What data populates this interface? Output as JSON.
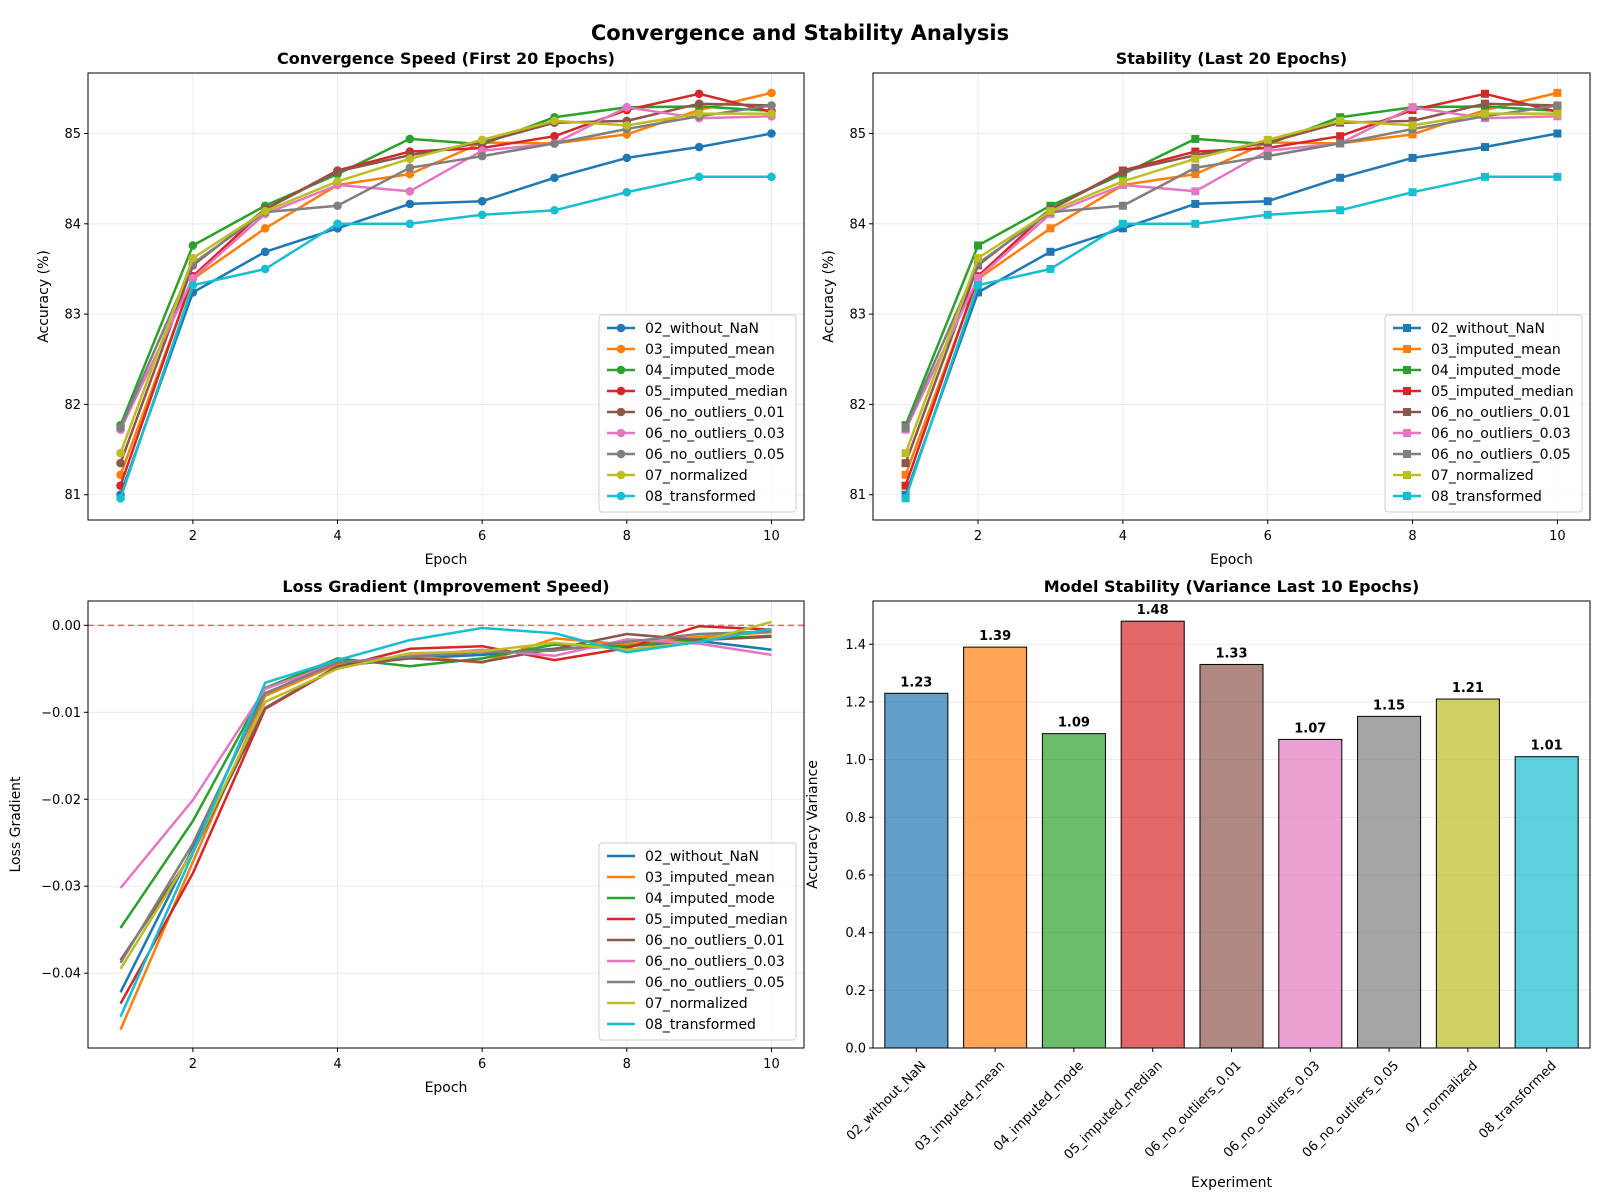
{
  "figure_title": "Convergence and Stability Analysis",
  "colors": {
    "02_without_NaN": "#1f77b4",
    "03_imputed_mean": "#ff7f0e",
    "04_imputed_mode": "#2ca02c",
    "05_imputed_median": "#d62728",
    "06_no_outliers_0.01": "#8c564b",
    "06_no_outliers_0.03": "#e377c2",
    "06_no_outliers_0.05": "#7f7f7f",
    "07_normalized": "#bcbd22",
    "08_transformed": "#17becf",
    "reference_line": "#e8686a"
  },
  "chart_data": [
    {
      "id": "convergence",
      "type": "line",
      "marker": "circle",
      "title": "Convergence Speed (First 20 Epochs)",
      "xlabel": "Epoch",
      "ylabel": "Accuracy (%)",
      "xlim": [
        0.55,
        10.45
      ],
      "ylim": [
        80.72,
        85.67
      ],
      "xticks": [
        2,
        4,
        6,
        8,
        10
      ],
      "yticks": [
        81,
        82,
        83,
        84,
        85
      ],
      "grid": true,
      "legend": "lower-right",
      "x": [
        1,
        2,
        3,
        4,
        5,
        6,
        7,
        8,
        9,
        10
      ],
      "series": [
        {
          "name": "02_without_NaN",
          "values": [
            81.0,
            83.24,
            83.69,
            83.95,
            84.22,
            84.25,
            84.51,
            84.73,
            84.85,
            85.0
          ]
        },
        {
          "name": "03_imputed_mean",
          "values": [
            81.22,
            83.39,
            83.95,
            84.43,
            84.55,
            84.9,
            84.89,
            84.99,
            85.26,
            85.45
          ]
        },
        {
          "name": "04_imputed_mode",
          "values": [
            81.77,
            83.76,
            84.2,
            84.55,
            84.94,
            84.88,
            85.18,
            85.29,
            85.3,
            85.25
          ]
        },
        {
          "name": "05_imputed_median",
          "values": [
            81.1,
            83.42,
            84.16,
            84.59,
            84.8,
            84.84,
            84.97,
            85.26,
            85.44,
            85.24
          ]
        },
        {
          "name": "06_no_outliers_0.01",
          "values": [
            81.35,
            83.54,
            84.16,
            84.58,
            84.76,
            84.9,
            85.12,
            85.14,
            85.33,
            85.31
          ]
        },
        {
          "name": "06_no_outliers_0.03",
          "values": [
            81.72,
            83.4,
            84.11,
            84.43,
            84.36,
            84.81,
            84.89,
            85.29,
            85.17,
            85.19
          ]
        },
        {
          "name": "06_no_outliers_0.05",
          "values": [
            81.74,
            83.56,
            84.13,
            84.2,
            84.62,
            84.75,
            84.89,
            85.05,
            85.19,
            85.31
          ]
        },
        {
          "name": "07_normalized",
          "values": [
            81.46,
            83.62,
            84.14,
            84.47,
            84.72,
            84.93,
            85.14,
            85.09,
            85.22,
            85.22
          ]
        },
        {
          "name": "08_transformed",
          "values": [
            80.96,
            83.32,
            83.5,
            84.0,
            84.0,
            84.1,
            84.15,
            84.35,
            84.52,
            84.52
          ]
        }
      ]
    },
    {
      "id": "stability",
      "type": "line",
      "marker": "square",
      "title": "Stability (Last 20 Epochs)",
      "xlabel": "Epoch",
      "ylabel": "Accuracy (%)",
      "xlim": [
        0.55,
        10.45
      ],
      "ylim": [
        80.72,
        85.67
      ],
      "xticks": [
        2,
        4,
        6,
        8,
        10
      ],
      "yticks": [
        81,
        82,
        83,
        84,
        85
      ],
      "grid": true,
      "legend": "lower-right",
      "x": [
        1,
        2,
        3,
        4,
        5,
        6,
        7,
        8,
        9,
        10
      ],
      "series": [
        {
          "name": "02_without_NaN",
          "values": [
            81.0,
            83.24,
            83.69,
            83.95,
            84.22,
            84.25,
            84.51,
            84.73,
            84.85,
            85.0
          ]
        },
        {
          "name": "03_imputed_mean",
          "values": [
            81.22,
            83.39,
            83.95,
            84.43,
            84.55,
            84.9,
            84.89,
            84.99,
            85.26,
            85.45
          ]
        },
        {
          "name": "04_imputed_mode",
          "values": [
            81.77,
            83.76,
            84.2,
            84.55,
            84.94,
            84.88,
            85.18,
            85.29,
            85.3,
            85.25
          ]
        },
        {
          "name": "05_imputed_median",
          "values": [
            81.1,
            83.42,
            84.16,
            84.59,
            84.8,
            84.84,
            84.97,
            85.26,
            85.44,
            85.24
          ]
        },
        {
          "name": "06_no_outliers_0.01",
          "values": [
            81.35,
            83.54,
            84.16,
            84.58,
            84.76,
            84.9,
            85.12,
            85.14,
            85.33,
            85.31
          ]
        },
        {
          "name": "06_no_outliers_0.03",
          "values": [
            81.72,
            83.4,
            84.11,
            84.43,
            84.36,
            84.81,
            84.89,
            85.29,
            85.17,
            85.19
          ]
        },
        {
          "name": "06_no_outliers_0.05",
          "values": [
            81.74,
            83.56,
            84.13,
            84.2,
            84.62,
            84.75,
            84.89,
            85.05,
            85.19,
            85.31
          ]
        },
        {
          "name": "07_normalized",
          "values": [
            81.46,
            83.62,
            84.14,
            84.47,
            84.72,
            84.93,
            85.14,
            85.09,
            85.22,
            85.22
          ]
        },
        {
          "name": "08_transformed",
          "values": [
            80.96,
            83.32,
            83.5,
            84.0,
            84.0,
            84.1,
            84.15,
            84.35,
            84.52,
            84.52
          ]
        }
      ]
    },
    {
      "id": "gradient",
      "type": "line",
      "marker": "none",
      "title": "Loss Gradient (Improvement Speed)",
      "xlabel": "Epoch",
      "ylabel": "Loss Gradient",
      "xlim": [
        0.55,
        10.45
      ],
      "ylim": [
        -0.0486,
        0.0028
      ],
      "xticks": [
        2,
        4,
        6,
        8,
        10
      ],
      "yticks": [
        -0.04,
        -0.03,
        -0.02,
        -0.01,
        0.0
      ],
      "ytick_labels": [
        "−0.04",
        "−0.03",
        "−0.02",
        "−0.01",
        "0.00"
      ],
      "grid": true,
      "legend": "lower-right",
      "reference_y": 0,
      "x": [
        1,
        2,
        3,
        4,
        5,
        6,
        7,
        8,
        9,
        10
      ],
      "series": [
        {
          "name": "02_without_NaN",
          "values": [
            -0.0422,
            -0.0256,
            -0.0072,
            -0.0042,
            -0.0038,
            -0.0034,
            -0.0027,
            -0.0024,
            -0.0018,
            -0.0028
          ]
        },
        {
          "name": "03_imputed_mean",
          "values": [
            -0.0465,
            -0.0272,
            -0.0081,
            -0.0045,
            -0.0035,
            -0.0043,
            -0.0015,
            -0.0022,
            -0.0013,
            -0.0008
          ]
        },
        {
          "name": "04_imputed_mode",
          "values": [
            -0.0348,
            -0.0225,
            -0.0072,
            -0.0038,
            -0.0047,
            -0.0038,
            -0.0022,
            -0.0024,
            -0.0016,
            -0.0012
          ]
        },
        {
          "name": "05_imputed_median",
          "values": [
            -0.0435,
            -0.0285,
            -0.0096,
            -0.0048,
            -0.0027,
            -0.0024,
            -0.004,
            -0.0026,
            -0.0001,
            -0.0005
          ]
        },
        {
          "name": "06_no_outliers_0.01",
          "values": [
            -0.0385,
            -0.0261,
            -0.0095,
            -0.0047,
            -0.0038,
            -0.0042,
            -0.0027,
            -0.001,
            -0.0017,
            -0.0013
          ]
        },
        {
          "name": "06_no_outliers_0.03",
          "values": [
            -0.0302,
            -0.0201,
            -0.0073,
            -0.0043,
            -0.0035,
            -0.0028,
            -0.0035,
            -0.0016,
            -0.0021,
            -0.0034
          ]
        },
        {
          "name": "06_no_outliers_0.05",
          "values": [
            -0.0388,
            -0.0251,
            -0.0078,
            -0.0043,
            -0.0036,
            -0.0031,
            -0.0029,
            -0.0019,
            -0.001,
            -0.0007
          ]
        },
        {
          "name": "07_normalized",
          "values": [
            -0.0395,
            -0.026,
            -0.0088,
            -0.005,
            -0.0032,
            -0.003,
            -0.002,
            -0.0028,
            -0.0019,
            0.0004
          ]
        },
        {
          "name": "08_transformed",
          "values": [
            -0.045,
            -0.0262,
            -0.0066,
            -0.004,
            -0.0017,
            -0.0003,
            -0.0009,
            -0.0031,
            -0.0019,
            -0.0004
          ]
        }
      ]
    },
    {
      "id": "variance",
      "type": "bar",
      "title": "Model Stability (Variance Last 10 Epochs)",
      "xlabel": "Experiment",
      "ylabel": "Accuracy Variance",
      "ylim": [
        0,
        1.55
      ],
      "yticks": [
        0.0,
        0.2,
        0.4,
        0.6,
        0.8,
        1.0,
        1.2,
        1.4
      ],
      "grid": true,
      "categories": [
        "02_without_NaN",
        "03_imputed_mean",
        "04_imputed_mode",
        "05_imputed_median",
        "06_no_outliers_0.01",
        "06_no_outliers_0.03",
        "06_no_outliers_0.05",
        "07_normalized",
        "08_transformed"
      ],
      "values": [
        1.23,
        1.39,
        1.09,
        1.48,
        1.33,
        1.07,
        1.15,
        1.21,
        1.01
      ],
      "value_labels": [
        "1.23",
        "1.39",
        "1.09",
        "1.48",
        "1.33",
        "1.07",
        "1.15",
        "1.21",
        "1.01"
      ]
    }
  ]
}
